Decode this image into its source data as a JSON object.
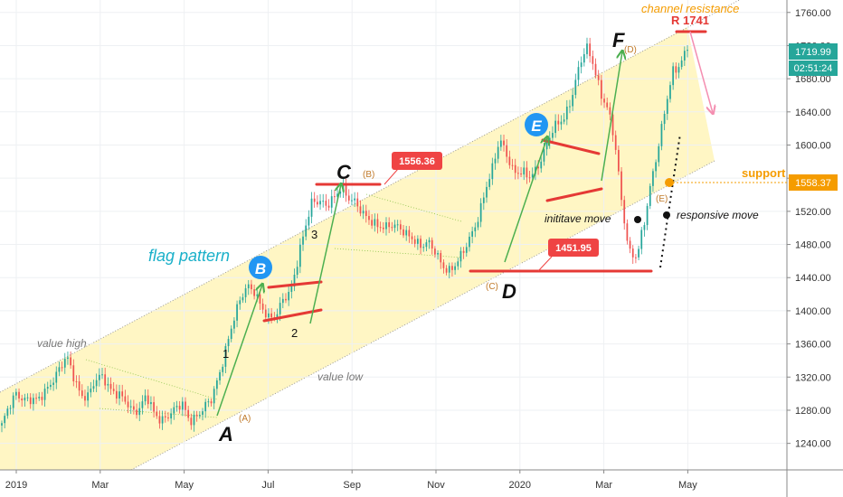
{
  "chart_data": {
    "type": "candlestick",
    "x_ticks": [
      "2019",
      "Mar",
      "May",
      "Jul",
      "Sep",
      "Nov",
      "2020",
      "Mar",
      "May"
    ],
    "y_ticks": [
      1240,
      1280,
      1320,
      1360,
      1400,
      1440,
      1480,
      1520,
      1560,
      1600,
      1640,
      1680,
      1720,
      1760
    ],
    "ylim": [
      1208,
      1775
    ],
    "price_labels": {
      "last": "1719.99",
      "countdown": "02:51:24",
      "support": "1558.37"
    },
    "series": [
      {
        "values": [
          1262,
          1282,
          1300,
          1296,
          1293,
          1289,
          1303,
          1318,
          1330,
          1342,
          1320,
          1300,
          1297,
          1314,
          1322,
          1308,
          1299,
          1290,
          1280,
          1283,
          1298,
          1275,
          1268,
          1276,
          1281,
          1285,
          1268,
          1275,
          1282,
          1290,
          1320,
          1355,
          1385,
          1410,
          1432,
          1426,
          1402,
          1388,
          1396,
          1418,
          1420,
          1458,
          1502,
          1535,
          1530,
          1524,
          1538,
          1552,
          1534,
          1528,
          1520,
          1512,
          1500,
          1498,
          1506,
          1504,
          1490,
          1484,
          1480,
          1486,
          1470,
          1452,
          1450,
          1460,
          1470,
          1488,
          1514,
          1548,
          1570,
          1606,
          1590,
          1568,
          1565,
          1560,
          1572,
          1590,
          1610,
          1625,
          1636,
          1660,
          1692,
          1718,
          1700,
          1662,
          1640,
          1600,
          1525,
          1470,
          1462,
          1505,
          1560,
          1600,
          1645,
          1688,
          1700,
          1720
        ]
      }
    ],
    "annotations": {
      "waves": [
        "A",
        "B",
        "C",
        "D",
        "E",
        "F"
      ],
      "sub_waves": [
        "(A)",
        "(B)",
        "(C)",
        "(D)",
        "(E)"
      ],
      "counts": [
        "1",
        "2",
        "3"
      ],
      "labels": {
        "channel_resistance": "channel resistance",
        "resistance_level": "R 1741",
        "support": "support",
        "flag_pattern": "flag pattern",
        "value_high": "value high",
        "value_low": "value low",
        "initiative_move": "inititave move",
        "responsive_move": "responsive move"
      },
      "price_callouts": [
        "1556.36",
        "1451.95"
      ]
    },
    "colors": {
      "up": "#26a69a",
      "down": "#ef5350",
      "channel_fill": "#fff6c4",
      "arrow": "#4caf50",
      "red_line": "#e53935",
      "support": "#f59c00",
      "circle": "#2196f3",
      "callout_bg": "#ef4444"
    }
  }
}
